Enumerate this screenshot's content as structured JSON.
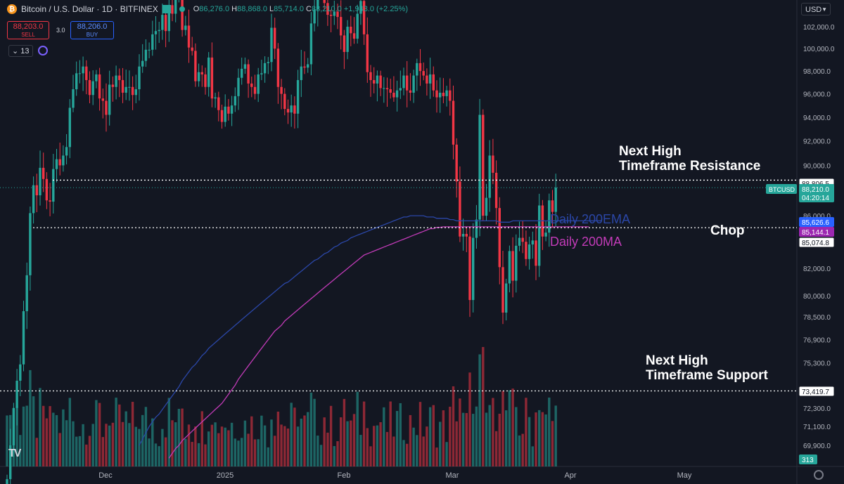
{
  "header": {
    "symbol_title": "Bitcoin / U.S. Dollar · 1D · BITFINEX",
    "ohlc": {
      "o_label": "O",
      "o": "86,276.0",
      "h_label": "H",
      "h": "88,868.0",
      "l_label": "L",
      "l": "85,714.0",
      "c_label": "C",
      "c": "88,210.0",
      "change": "+1,943.0 (+2.25%)"
    },
    "sell_price": "88,203.0",
    "sell_label": "SELL",
    "spread": "3.0",
    "buy_price": "88,206.0",
    "buy_label": "BUY",
    "indicators_count": "13",
    "currency": "USD",
    "logo": "TV"
  },
  "colors": {
    "up": "#26a69a",
    "down": "#f23645",
    "ema": "#2b47a8",
    "ma": "#c23bb8",
    "background": "#131722"
  },
  "chart_data": {
    "type": "candlestick",
    "symbol": "BTCUSD",
    "ylim": [
      68000,
      104000
    ],
    "y_scale": "log",
    "y_ticks": [
      "102,000.0",
      "100,000.0",
      "98,000.0",
      "96,000.0",
      "94,000.0",
      "92,000.0",
      "90,000.0",
      "86,000.0",
      "82,000.0",
      "80,000.0",
      "78,500.0",
      "76,900.0",
      "75,300.0",
      "72,300.0",
      "71,100.0",
      "69,900.0"
    ],
    "y_tick_values": [
      102000,
      100000,
      98000,
      96000,
      94000,
      92000,
      90000,
      86000,
      82000,
      80000,
      78500,
      76900,
      75300,
      72300,
      71100,
      69900
    ],
    "x_ticks": [
      "Dec",
      "2025",
      "Feb",
      "Mar",
      "Apr",
      "May"
    ],
    "price_tags": [
      {
        "label": "88,806.5",
        "value": 88806.5,
        "style": "white"
      },
      {
        "label": "BTCUSD",
        "value": 88210,
        "style": "green-symbol"
      },
      {
        "label": "88,210.0",
        "sublabel": "04:20:14",
        "value": 88210,
        "style": "green"
      },
      {
        "label": "85,626.6",
        "value": 85626.6,
        "style": "blue"
      },
      {
        "label": "85,144.1",
        "value": 85144.1,
        "style": "purple"
      },
      {
        "label": "85,074.8",
        "value": 85074.8,
        "style": "white"
      },
      {
        "label": "73,419.7",
        "value": 73419.7,
        "style": "white"
      },
      {
        "label": "313",
        "value": 69400,
        "style": "green-volume"
      }
    ],
    "levels": [
      {
        "value": 88806.5,
        "label": "Next High Timeframe Resistance",
        "label_lines": [
          "Next High",
          "Timeframe Resistance"
        ]
      },
      {
        "value": 85074.8,
        "label": "Chop"
      },
      {
        "value": 73419.7,
        "label": "Next High Timeframe Support",
        "label_lines": [
          "Next High",
          "Timeframe Support"
        ]
      }
    ],
    "series_labels": [
      {
        "name": "Daily 200EMA",
        "color": "#2b47a8"
      },
      {
        "name": "Daily 200MA",
        "color": "#c23bb8"
      }
    ],
    "close": [
      67800,
      69900,
      72300,
      74100,
      75200,
      78900,
      81500,
      86200,
      88400,
      87600,
      89800,
      88900,
      87200,
      87100,
      89700,
      90500,
      90000,
      90800,
      91500,
      94800,
      96400,
      97800,
      97800,
      98400,
      97200,
      95900,
      97100,
      97700,
      95600,
      95400,
      94200,
      96800,
      96600,
      97600,
      97200,
      96100,
      96600,
      96600,
      95900,
      96400,
      98400,
      98900,
      99900,
      99900,
      101300,
      101600,
      101700,
      103100,
      101600,
      104000,
      103200,
      104900,
      105000,
      101700,
      102100,
      100100,
      99800,
      97100,
      97900,
      97700,
      96600,
      99200,
      95600,
      95700,
      94600,
      93600,
      94900,
      94300,
      95000,
      95800,
      97400,
      98200,
      98600,
      96900,
      96600,
      96000,
      97700,
      97800,
      98700,
      98800,
      101900,
      100000,
      96600,
      96000,
      94700,
      94400,
      95000,
      94300,
      97200,
      98400,
      98300,
      98600,
      102300,
      103600,
      105200,
      106000,
      104200,
      103100,
      103000,
      103400,
      102900,
      101200,
      99700,
      102000,
      101400,
      100900,
      103200,
      104400,
      101300,
      97900,
      97200,
      96900,
      97600,
      96500,
      96500,
      96400,
      96100,
      95700,
      96300,
      96500,
      97600,
      96300,
      96100,
      97600,
      98700,
      98000,
      97600,
      96900,
      97700,
      96300,
      95700,
      96100,
      95800,
      96300,
      95400,
      91700,
      88700,
      84400,
      84600,
      84400,
      79700,
      84300,
      85700,
      94200,
      86000,
      87400,
      90800,
      89400,
      86600,
      82100,
      78800,
      80900,
      83300,
      81100,
      83700,
      84300,
      84000,
      82700,
      83800,
      84100,
      82200,
      86800,
      84400,
      84700,
      87200,
      86300,
      88210
    ],
    "ema200": [
      null,
      null,
      null,
      null,
      null,
      null,
      null,
      null,
      null,
      null,
      null,
      null,
      null,
      null,
      null,
      null,
      null,
      null,
      null,
      null,
      null,
      null,
      null,
      null,
      null,
      null,
      null,
      null,
      null,
      null,
      null,
      null,
      null,
      null,
      null,
      null,
      null,
      null,
      null,
      null,
      69900,
      70300,
      70700,
      71100,
      71400,
      71700,
      71900,
      72200,
      72500,
      72800,
      73100,
      73400,
      73700,
      74100,
      74400,
      74700,
      75000,
      75200,
      75500,
      75800,
      76000,
      76300,
      76500,
      76700,
      76900,
      77100,
      77300,
      77500,
      77700,
      77900,
      78100,
      78300,
      78500,
      78700,
      78900,
      79100,
      79300,
      79500,
      79700,
      79900,
      80100,
      80300,
      80500,
      80700,
      80900,
      81000,
      81200,
      81400,
      81600,
      81800,
      82000,
      82200,
      82400,
      82600,
      82700,
      82900,
      83100,
      83200,
      83400,
      83600,
      83700,
      83900,
      84000,
      84100,
      84300,
      84400,
      84500,
      84600,
      84700,
      84800,
      84900,
      85000,
      85100,
      85200,
      85300,
      85400,
      85500,
      85600,
      85700,
      85800,
      85900,
      85900,
      86000,
      86000,
      86000,
      86000,
      86000,
      85900,
      85900,
      85900,
      85800,
      85800,
      85800,
      85800,
      85700,
      85700,
      85600,
      85600,
      85600,
      85600,
      85600,
      85600,
      85600,
      85600,
      85600,
      85600,
      85600,
      85600,
      85600,
      85500,
      85500,
      85500,
      85500,
      85600,
      85600,
      85600,
      85600,
      85600,
      85600,
      85600,
      85600,
      85600,
      85600,
      85600,
      85600,
      85600,
      85600,
      85600,
      85600,
      85600,
      85600,
      85600,
      85600,
      85600,
      85600,
      85600,
      85600,
      85600,
      85600,
      85600,
      85626.6
    ],
    "ma200": [
      null,
      null,
      null,
      null,
      null,
      null,
      null,
      null,
      null,
      null,
      null,
      null,
      null,
      null,
      null,
      null,
      null,
      null,
      null,
      null,
      null,
      null,
      null,
      null,
      null,
      null,
      null,
      null,
      null,
      null,
      null,
      null,
      null,
      null,
      null,
      null,
      null,
      null,
      null,
      null,
      null,
      null,
      null,
      null,
      null,
      null,
      null,
      null,
      null,
      69100,
      69400,
      69700,
      69900,
      70200,
      70400,
      70600,
      70800,
      71000,
      71200,
      71400,
      71600,
      71800,
      72000,
      72200,
      72400,
      72600,
      72900,
      73200,
      73500,
      73800,
      74200,
      74500,
      74800,
      75100,
      75400,
      75700,
      76000,
      76300,
      76600,
      76900,
      77200,
      77500,
      77700,
      77900,
      78200,
      78400,
      78600,
      78800,
      79000,
      79200,
      79400,
      79600,
      79800,
      80000,
      80200,
      80400,
      80600,
      80800,
      81000,
      81200,
      81400,
      81600,
      81800,
      82000,
      82200,
      82400,
      82600,
      82800,
      83000,
      83100,
      83200,
      83300,
      83400,
      83500,
      83600,
      83700,
      83800,
      83900,
      84000,
      84100,
      84200,
      84300,
      84400,
      84500,
      84600,
      84700,
      84800,
      84900,
      85000,
      85000,
      85100,
      85100,
      85144.1,
      85144.1,
      85144.1,
      85144.1,
      85144.1,
      85144.1,
      85144.1,
      85144.1,
      85144.1,
      85144.1,
      85144.1,
      85144.1,
      85144.1,
      85144.1,
      85144.1,
      85144.1,
      85144.1,
      85144.1,
      85144.1,
      85144.1,
      85144.1,
      85144.1,
      85144.1,
      85144.1,
      85144.1,
      85144.1,
      85144.1,
      85144.1,
      85144.1,
      85144.1,
      85144.1,
      85144.1,
      85144.1,
      85144.1,
      85144.1,
      85144.1,
      85144.1,
      85144.1,
      85144.1,
      85144.1,
      85144.1,
      85144.1,
      85144.1,
      85144.1,
      85144.1
    ],
    "volume_last": 313
  }
}
